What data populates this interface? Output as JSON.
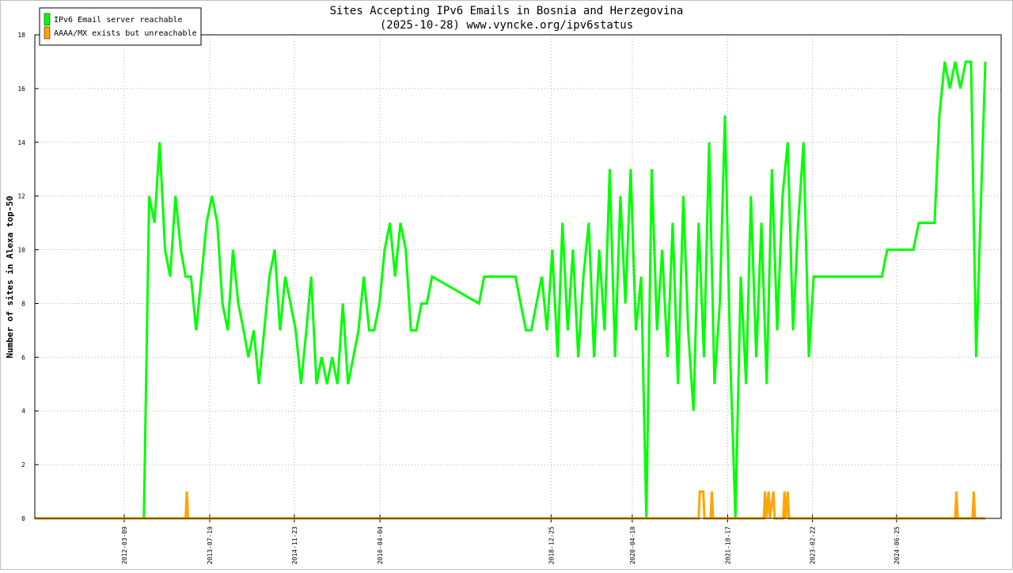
{
  "chart_data": {
    "type": "line",
    "title": "Sites Accepting IPv6 Emails in Bosnia and Herzegovina",
    "subtitle": "(2025-10-28) www.vyncke.org/ipv6status",
    "y_label": "Number of sites in Alexa top-50",
    "xlim": [
      "2010-10-06",
      "2026-02-23"
    ],
    "xticks": [
      "2012-03-09",
      "2013-07-19",
      "2014-11-23",
      "2016-04-04",
      "2018-12-25",
      "2020-04-10",
      "2021-10-17",
      "2023-02-22",
      "2024-06-25"
    ],
    "ylim": [
      0,
      18
    ],
    "yticks": [
      0,
      2,
      4,
      6,
      8,
      10,
      12,
      14,
      16,
      18
    ],
    "grid": true,
    "legend": "top-left",
    "series": [
      {
        "name": "IPv6 Email server reachable",
        "color": "#00ff00",
        "x": [
          "2010-10-06",
          "2012-07-01",
          "2012-08-01",
          "2012-09-01",
          "2012-10-01",
          "2012-11-01",
          "2012-12-01",
          "2013-01-01",
          "2013-02-01",
          "2013-03-01",
          "2013-04-01",
          "2013-05-01",
          "2013-06-01",
          "2013-07-01",
          "2013-08-01",
          "2013-09-01",
          "2013-10-01",
          "2013-11-01",
          "2013-12-01",
          "2014-01-01",
          "2014-02-01",
          "2014-03-01",
          "2014-04-01",
          "2014-05-01",
          "2014-06-01",
          "2014-07-01",
          "2014-08-01",
          "2014-09-01",
          "2014-10-01",
          "2014-11-01",
          "2014-12-01",
          "2015-01-01",
          "2015-02-01",
          "2015-03-01",
          "2015-04-01",
          "2015-05-01",
          "2015-06-01",
          "2015-07-01",
          "2015-08-01",
          "2015-09-01",
          "2015-10-01",
          "2015-11-01",
          "2015-12-01",
          "2016-01-01",
          "2016-02-01",
          "2016-03-01",
          "2016-04-01",
          "2016-05-01",
          "2016-06-01",
          "2016-07-01",
          "2016-08-01",
          "2016-09-01",
          "2016-10-01",
          "2016-11-01",
          "2016-12-01",
          "2017-01-01",
          "2017-02-01",
          "2017-11-01",
          "2017-12-01",
          "2018-06-01",
          "2018-07-01",
          "2018-08-01",
          "2018-09-01",
          "2018-10-01",
          "2018-11-01",
          "2018-12-01",
          "2019-01-01",
          "2019-02-01",
          "2019-03-01",
          "2019-04-01",
          "2019-05-01",
          "2019-06-01",
          "2019-07-01",
          "2019-08-01",
          "2019-09-01",
          "2019-10-01",
          "2019-11-01",
          "2019-12-01",
          "2020-01-01",
          "2020-02-01",
          "2020-03-01",
          "2020-04-01",
          "2020-05-01",
          "2020-06-01",
          "2020-07-01",
          "2020-08-01",
          "2020-09-01",
          "2020-10-01",
          "2020-11-01",
          "2020-12-01",
          "2021-01-01",
          "2021-02-01",
          "2021-03-01",
          "2021-04-01",
          "2021-05-01",
          "2021-06-01",
          "2021-07-01",
          "2021-08-01",
          "2021-09-01",
          "2021-10-01",
          "2021-11-01",
          "2021-12-01",
          "2022-01-01",
          "2022-02-01",
          "2022-03-01",
          "2022-04-01",
          "2022-05-01",
          "2022-06-01",
          "2022-07-01",
          "2022-08-01",
          "2022-09-01",
          "2022-10-01",
          "2022-11-01",
          "2022-12-01",
          "2023-01-01",
          "2023-02-01",
          "2023-03-01",
          "2024-04-01",
          "2024-05-01",
          "2024-10-01",
          "2024-11-01",
          "2025-02-01",
          "2025-03-01",
          "2025-04-01",
          "2025-05-01",
          "2025-06-01",
          "2025-07-01",
          "2025-08-01",
          "2025-09-01",
          "2025-10-01",
          "2025-11-23"
        ],
        "values": [
          0,
          0,
          12,
          11,
          14,
          10,
          9,
          12,
          10,
          9,
          9,
          7,
          9,
          11,
          12,
          11,
          8,
          7,
          10,
          8,
          7,
          6,
          7,
          5,
          7,
          9,
          10,
          7,
          9,
          8,
          7,
          5,
          7,
          9,
          5,
          6,
          5,
          6,
          5,
          8,
          5,
          6,
          7,
          9,
          7,
          7,
          8,
          10,
          11,
          9,
          11,
          10,
          7,
          7,
          8,
          8,
          9,
          8,
          9,
          9,
          8,
          7,
          7,
          8,
          9,
          7,
          10,
          6,
          11,
          7,
          10,
          6,
          9,
          11,
          6,
          10,
          7,
          13,
          6,
          12,
          8,
          13,
          7,
          9,
          0,
          13,
          7,
          10,
          6,
          11,
          5,
          12,
          7,
          4,
          11,
          6,
          14,
          5,
          8,
          15,
          6,
          0,
          9,
          5,
          12,
          6,
          11,
          5,
          13,
          7,
          12,
          14,
          7,
          11,
          14,
          6,
          9,
          9,
          10,
          10,
          11,
          11,
          15,
          17,
          16,
          17,
          16,
          17,
          17,
          6,
          17
        ]
      },
      {
        "name": "AAAA/MX exists but unreachable",
        "color": "#ffa500",
        "x": [
          "2010-10-06",
          "2013-03-01",
          "2013-03-08",
          "2013-03-15",
          "2021-05-01",
          "2021-05-08",
          "2021-05-28",
          "2021-06-04",
          "2021-07-10",
          "2021-07-17",
          "2021-07-24",
          "2022-05-15",
          "2022-05-22",
          "2022-05-29",
          "2022-06-12",
          "2022-06-19",
          "2022-07-10",
          "2022-07-17",
          "2022-09-05",
          "2022-09-12",
          "2022-09-19",
          "2022-10-01",
          "2022-10-08",
          "2025-06-01",
          "2025-06-08",
          "2025-06-15",
          "2025-09-10",
          "2025-09-17",
          "2025-09-24",
          "2025-11-23"
        ],
        "values": [
          0,
          0,
          1,
          0,
          0,
          1,
          1,
          0,
          0,
          1,
          0,
          0,
          1,
          0,
          1,
          0,
          1,
          0,
          0,
          1,
          0,
          1,
          0,
          0,
          1,
          0,
          0,
          1,
          0,
          0
        ]
      }
    ]
  }
}
